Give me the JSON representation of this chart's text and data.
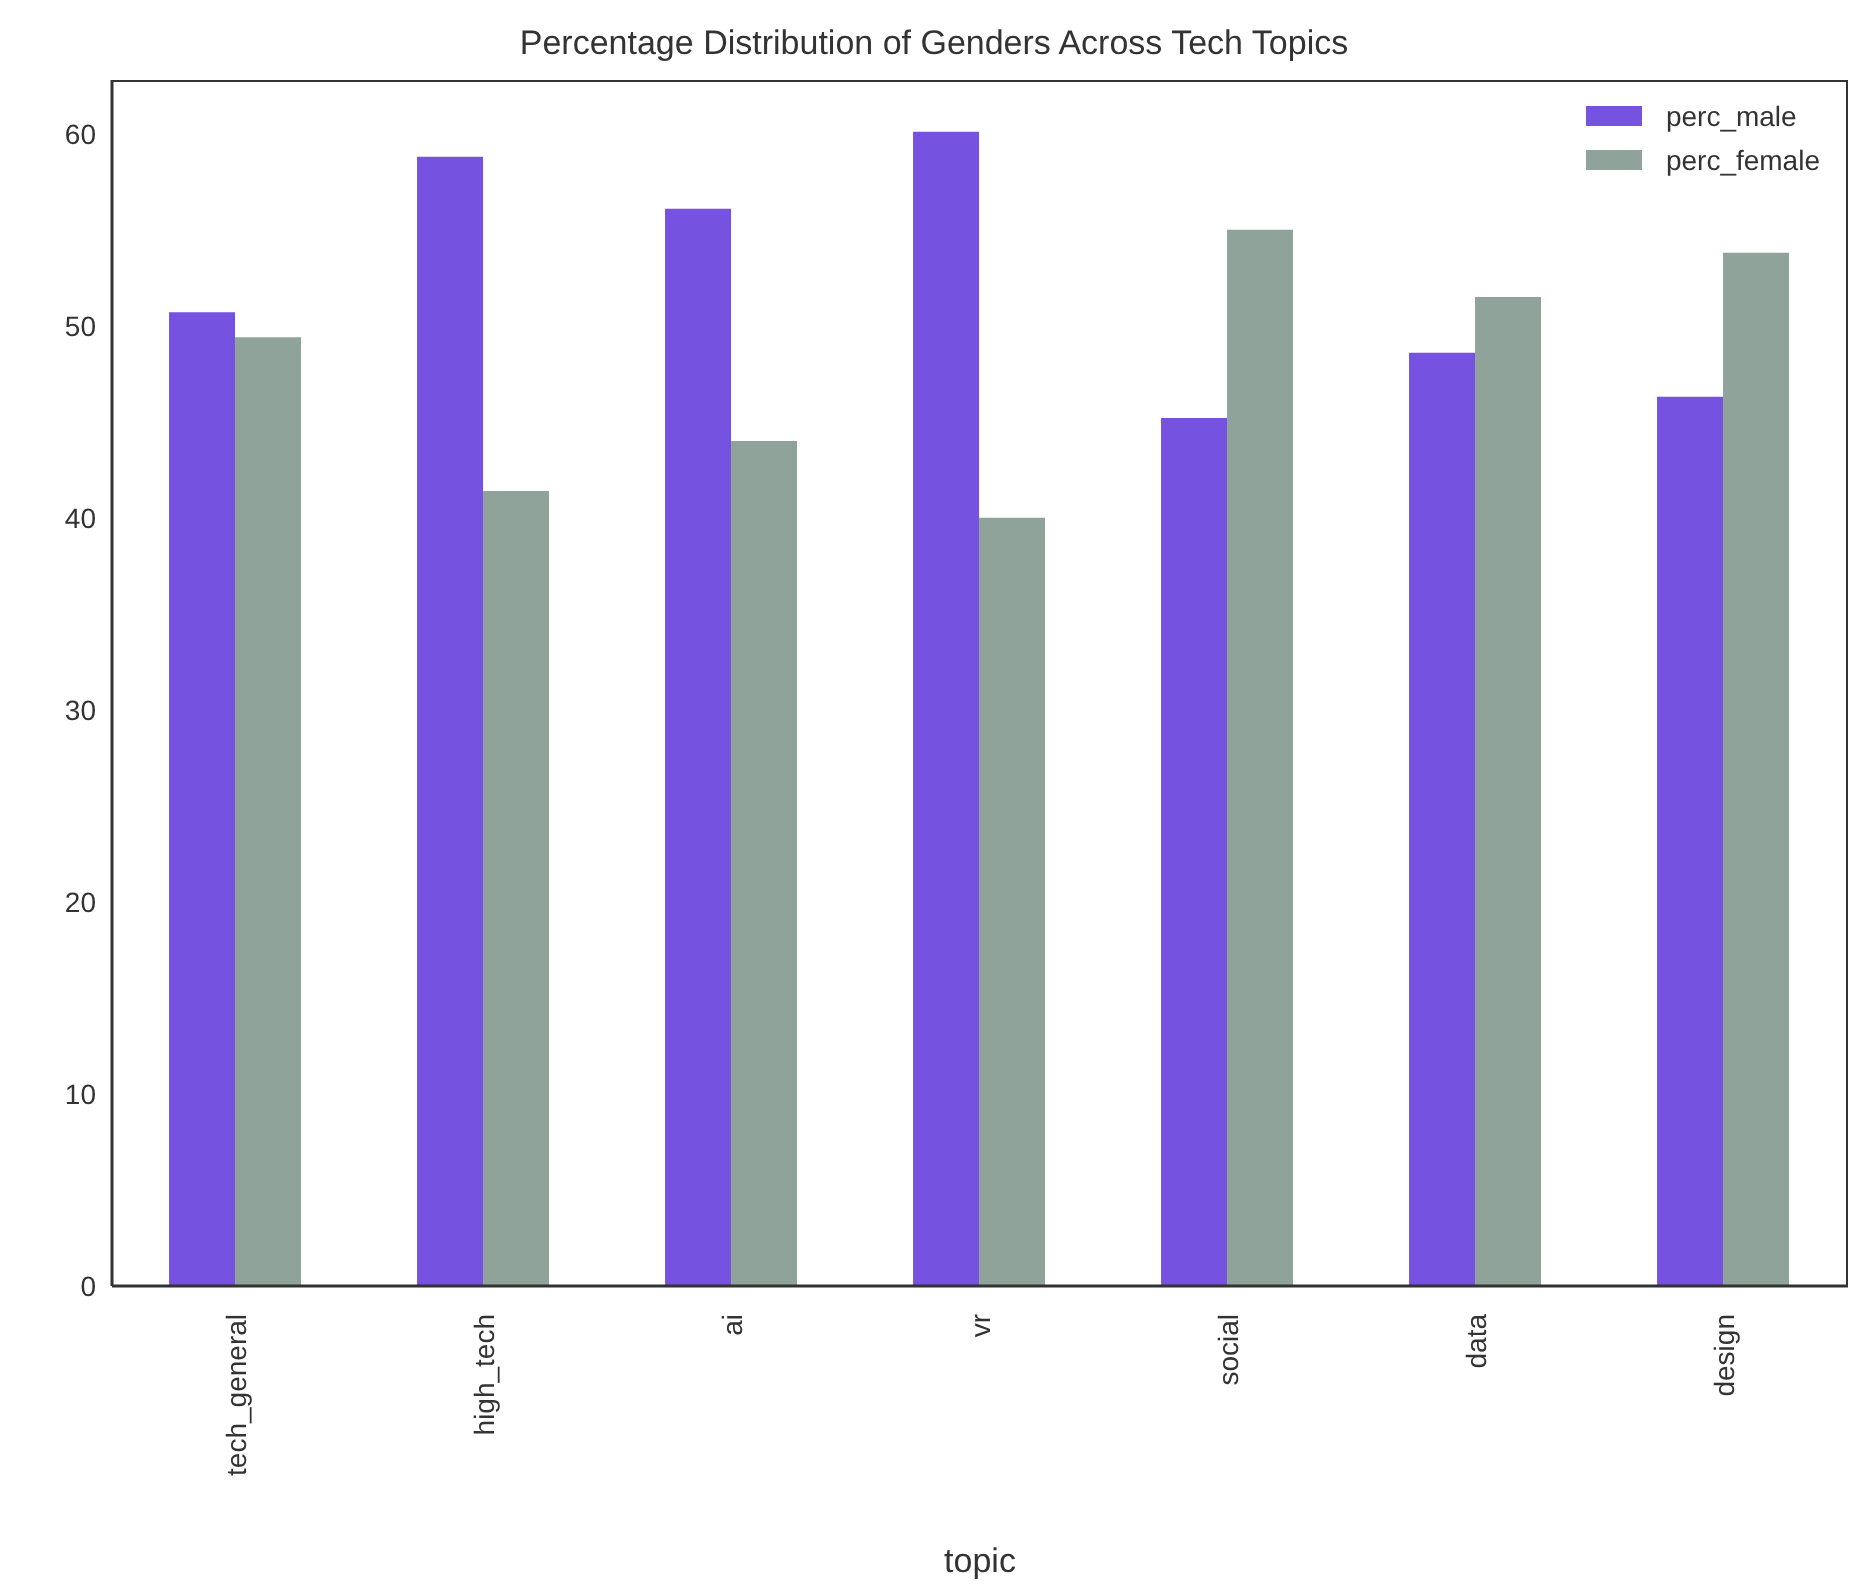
{
  "chart_data": {
    "type": "bar",
    "title": "Percentage Distribution of Genders Across Tech Topics",
    "xlabel": "topic",
    "categories": [
      "tech_general",
      "high_tech",
      "ai",
      "vr",
      "social",
      "data",
      "design"
    ],
    "series": [
      {
        "name": "perc_male",
        "color": "#7652e0",
        "values": [
          50.7,
          58.8,
          56.1,
          60.1,
          45.2,
          48.6,
          46.3
        ]
      },
      {
        "name": "perc_female",
        "color": "#8fa39a",
        "values": [
          49.4,
          41.4,
          44.0,
          40.0,
          55.0,
          51.5,
          53.8
        ]
      }
    ],
    "ylim": [
      0,
      62.8
    ],
    "yticks": [
      0,
      10,
      20,
      30,
      40,
      50,
      60
    ],
    "grid": false,
    "legend": "top right"
  }
}
